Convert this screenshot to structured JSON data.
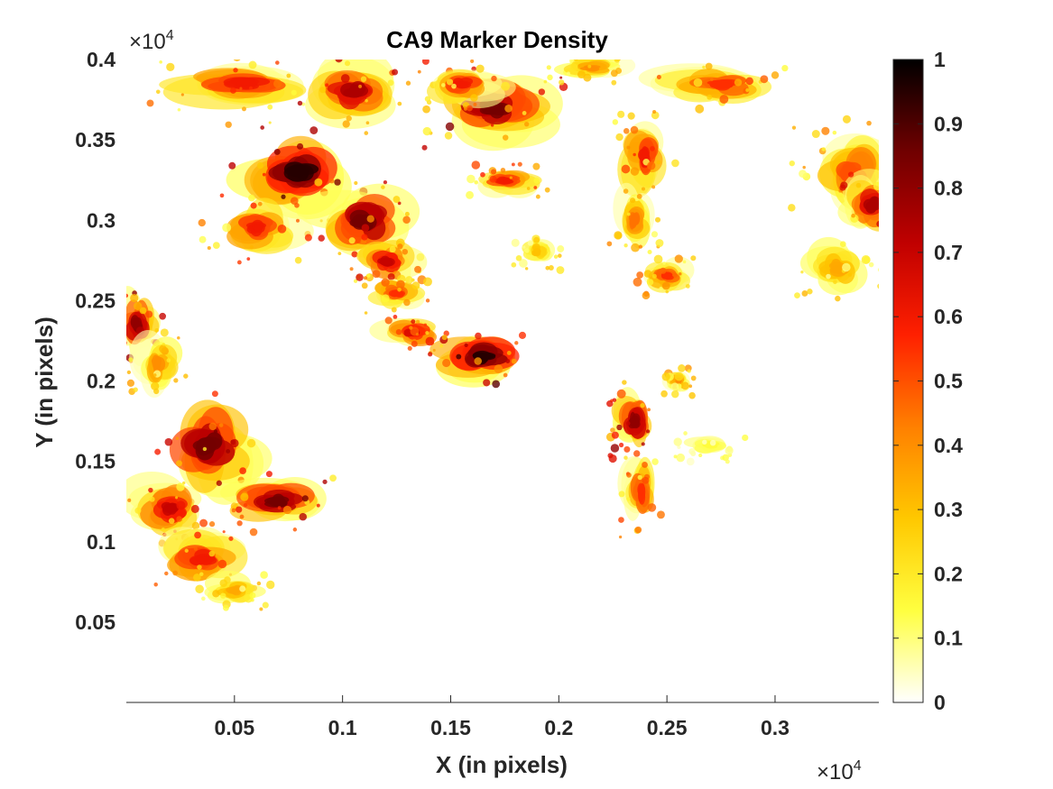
{
  "chart_data": {
    "type": "heatmap",
    "title": "CA9 Marker Density",
    "xlabel": "X (in pixels)",
    "ylabel": "Y (in pixels)",
    "x_exponent_label": "×10",
    "x_exponent_power": "4",
    "y_exponent_label": "×10",
    "y_exponent_power": "4",
    "xlim": [
      0,
      3480
    ],
    "ylim": [
      0,
      4000
    ],
    "x_ticks": [
      500,
      1000,
      1500,
      2000,
      2500,
      3000
    ],
    "x_tick_labels": [
      "0.05",
      "0.1",
      "0.15",
      "0.2",
      "0.25",
      "0.3"
    ],
    "y_ticks": [
      500,
      1000,
      1500,
      2000,
      2500,
      3000,
      3500,
      4000
    ],
    "y_tick_labels": [
      "0.05",
      "0.1",
      "0.15",
      "0.2",
      "0.25",
      "0.3",
      "0.35",
      "0.4"
    ],
    "colormap": "hot (reversed, white = 0, black = 1)",
    "color_stops": [
      "#ffffff",
      "#ffff40",
      "#ffc800",
      "#ff8000",
      "#ff2000",
      "#c00000",
      "#700000",
      "#000000"
    ],
    "colorbar_ticks": [
      0,
      0.1,
      0.2,
      0.3,
      0.4,
      0.5,
      0.6,
      0.7,
      0.8,
      0.9,
      1
    ],
    "colorbar_tick_labels": [
      "0",
      "0.1",
      "0.2",
      "0.3",
      "0.4",
      "0.5",
      "0.6",
      "0.7",
      "0.8",
      "0.9",
      "1"
    ],
    "clim": [
      0,
      1
    ],
    "grid": false,
    "density_regions": [
      {
        "x": 550,
        "y": 3850,
        "rx": 420,
        "ry": 160,
        "peak": 0.6
      },
      {
        "x": 1050,
        "y": 3800,
        "rx": 250,
        "ry": 220,
        "peak": 0.75
      },
      {
        "x": 800,
        "y": 3300,
        "rx": 300,
        "ry": 280,
        "peak": 0.95
      },
      {
        "x": 1100,
        "y": 3000,
        "rx": 250,
        "ry": 250,
        "peak": 0.85
      },
      {
        "x": 600,
        "y": 2950,
        "rx": 230,
        "ry": 200,
        "peak": 0.6
      },
      {
        "x": 1200,
        "y": 2750,
        "rx": 150,
        "ry": 150,
        "peak": 0.7
      },
      {
        "x": 1700,
        "y": 3700,
        "rx": 300,
        "ry": 240,
        "peak": 0.85
      },
      {
        "x": 1550,
        "y": 3850,
        "rx": 200,
        "ry": 150,
        "peak": 0.6
      },
      {
        "x": 1750,
        "y": 3250,
        "rx": 180,
        "ry": 100,
        "peak": 0.6
      },
      {
        "x": 2150,
        "y": 3950,
        "rx": 180,
        "ry": 90,
        "peak": 0.4
      },
      {
        "x": 2750,
        "y": 3850,
        "rx": 300,
        "ry": 150,
        "peak": 0.55
      },
      {
        "x": 2400,
        "y": 3400,
        "rx": 130,
        "ry": 250,
        "peak": 0.6
      },
      {
        "x": 2350,
        "y": 3000,
        "rx": 110,
        "ry": 200,
        "peak": 0.45
      },
      {
        "x": 2500,
        "y": 2650,
        "rx": 130,
        "ry": 110,
        "peak": 0.55
      },
      {
        "x": 1650,
        "y": 2150,
        "rx": 240,
        "ry": 180,
        "peak": 0.95
      },
      {
        "x": 1320,
        "y": 2300,
        "rx": 160,
        "ry": 110,
        "peak": 0.65
      },
      {
        "x": 1250,
        "y": 2550,
        "rx": 140,
        "ry": 120,
        "peak": 0.55
      },
      {
        "x": 2350,
        "y": 1750,
        "rx": 110,
        "ry": 230,
        "peak": 0.8
      },
      {
        "x": 2380,
        "y": 1300,
        "rx": 90,
        "ry": 250,
        "peak": 0.55
      },
      {
        "x": 2550,
        "y": 2000,
        "rx": 70,
        "ry": 90,
        "peak": 0.4
      },
      {
        "x": 50,
        "y": 2350,
        "rx": 110,
        "ry": 220,
        "peak": 0.8
      },
      {
        "x": 150,
        "y": 2100,
        "rx": 130,
        "ry": 220,
        "peak": 0.4
      },
      {
        "x": 380,
        "y": 1600,
        "rx": 250,
        "ry": 320,
        "peak": 0.85
      },
      {
        "x": 200,
        "y": 1200,
        "rx": 200,
        "ry": 200,
        "peak": 0.7
      },
      {
        "x": 700,
        "y": 1250,
        "rx": 250,
        "ry": 180,
        "peak": 0.85
      },
      {
        "x": 350,
        "y": 900,
        "rx": 240,
        "ry": 200,
        "peak": 0.6
      },
      {
        "x": 500,
        "y": 700,
        "rx": 160,
        "ry": 120,
        "peak": 0.35
      },
      {
        "x": 3350,
        "y": 3300,
        "rx": 250,
        "ry": 300,
        "peak": 0.5
      },
      {
        "x": 3450,
        "y": 3100,
        "rx": 150,
        "ry": 200,
        "peak": 0.75
      },
      {
        "x": 3300,
        "y": 2700,
        "rx": 200,
        "ry": 200,
        "peak": 0.35
      },
      {
        "x": 2700,
        "y": 1600,
        "rx": 160,
        "ry": 100,
        "peak": 0.15
      },
      {
        "x": 1900,
        "y": 2800,
        "rx": 100,
        "ry": 100,
        "peak": 0.3
      }
    ]
  }
}
